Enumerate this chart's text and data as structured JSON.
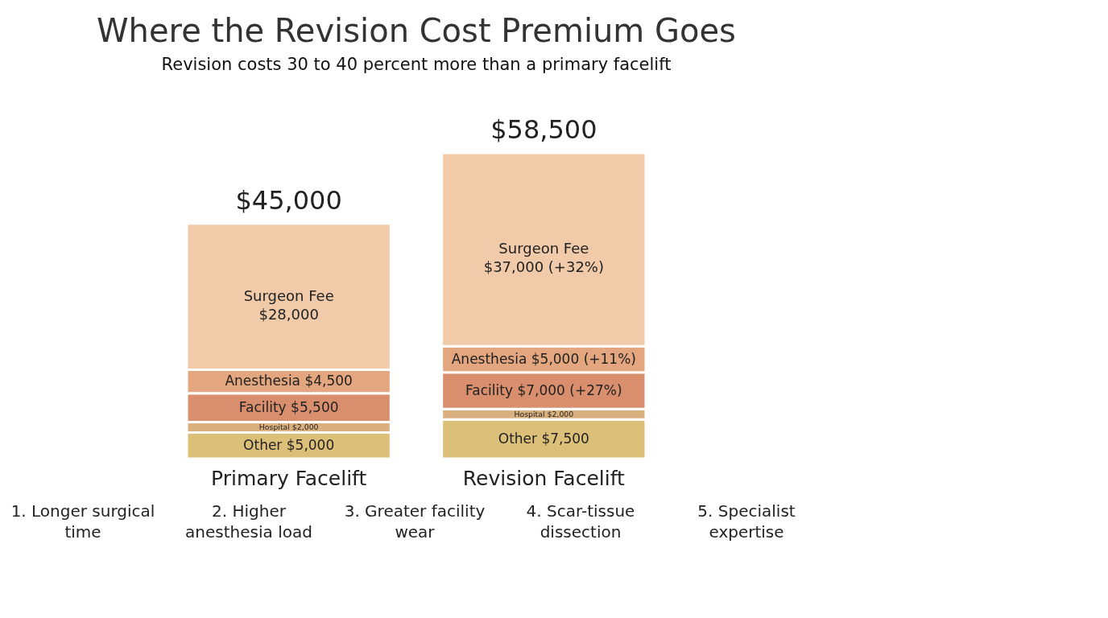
{
  "chart_data": {
    "type": "bar",
    "stacked": true,
    "title": "Where the Revision Cost Premium Goes",
    "subtitle": "Revision costs 30 to 40 percent more than a primary facelift",
    "categories": [
      "Primary Facelift",
      "Revision Facelift"
    ],
    "series": [
      {
        "name": "Other",
        "color": "#dcc07a",
        "values": [
          5000,
          7500
        ],
        "value_labels": [
          "$5,000",
          "$7,500"
        ]
      },
      {
        "name": "Hospital",
        "color": "#d9b07e",
        "values": [
          2000,
          2000
        ],
        "value_labels": [
          "$2,000",
          "$2,000"
        ]
      },
      {
        "name": "Facility",
        "color": "#d98f6e",
        "values": [
          5500,
          7000
        ],
        "value_labels": [
          "$5,500",
          "$7,000 (+27%)"
        ]
      },
      {
        "name": "Anesthesia",
        "color": "#e3a67e",
        "values": [
          4500,
          5000
        ],
        "value_labels": [
          "$4,500",
          "$5,000 (+11%)"
        ]
      },
      {
        "name": "Surgeon Fee",
        "color": "#f0caa9",
        "values": [
          28000,
          37000
        ],
        "value_labels": [
          "$28,000",
          "$37,000 (+32%)"
        ]
      }
    ],
    "totals": [
      "$45,000",
      "$58,500"
    ],
    "legend": false,
    "annotations": [
      "1. Longer surgical time",
      "2. Higher anesthesia load",
      "3. Greater facility wear",
      "4. Scar-tissue dissection",
      "5. Specialist expertise"
    ]
  }
}
